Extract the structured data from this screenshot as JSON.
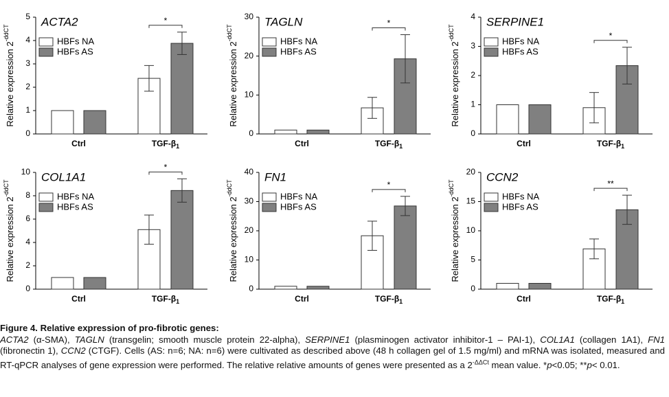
{
  "chart_data": [
    {
      "type": "bar",
      "title": "ACTA2",
      "ylabel": {
        "text": "Relative expression 2",
        "sup": "-ddCT"
      },
      "categories": [
        "Ctrl",
        {
          "text": "TGF-β",
          "sub": "1"
        }
      ],
      "series": [
        {
          "name": "HBFs NA",
          "color": "#ffffff",
          "values": [
            1,
            2.38
          ],
          "errors": [
            null,
            0.55
          ]
        },
        {
          "name": "HBFs AS",
          "color": "#808080",
          "values": [
            1,
            3.88
          ],
          "errors": [
            null,
            0.48
          ]
        }
      ],
      "significance": [
        null,
        "*"
      ],
      "ylim": [
        0,
        5
      ],
      "yticks": [
        0,
        1,
        2,
        3,
        4,
        5
      ]
    },
    {
      "type": "bar",
      "title": "TAGLN",
      "ylabel": {
        "text": "Relative expression 2",
        "sup": "-ddCT"
      },
      "categories": [
        "Ctrl",
        {
          "text": "TGF-β",
          "sub": "1"
        }
      ],
      "series": [
        {
          "name": "HBFs NA",
          "color": "#ffffff",
          "values": [
            1,
            6.7
          ],
          "errors": [
            null,
            2.7
          ]
        },
        {
          "name": "HBFs AS",
          "color": "#808080",
          "values": [
            1,
            19.3
          ],
          "errors": [
            null,
            6.2
          ]
        }
      ],
      "significance": [
        null,
        "*"
      ],
      "ylim": [
        0,
        30
      ],
      "yticks": [
        0,
        10,
        20,
        30
      ]
    },
    {
      "type": "bar",
      "title": "SERPINE1",
      "ylabel": {
        "text": "Relative expression 2",
        "sup": "-ddCT"
      },
      "categories": [
        "Ctrl",
        {
          "text": "TGF-β",
          "sub": "1"
        }
      ],
      "series": [
        {
          "name": "HBFs NA",
          "color": "#ffffff",
          "values": [
            1,
            0.9
          ],
          "errors": [
            null,
            0.52
          ]
        },
        {
          "name": "HBFs AS",
          "color": "#808080",
          "values": [
            1,
            2.34
          ],
          "errors": [
            null,
            0.63
          ]
        }
      ],
      "significance": [
        null,
        "*"
      ],
      "ylim": [
        0,
        4
      ],
      "yticks": [
        0,
        1,
        2,
        3,
        4
      ]
    },
    {
      "type": "bar",
      "title": "COL1A1",
      "ylabel": {
        "text": "Relative expression 2",
        "sup": "-ddCT"
      },
      "categories": [
        "Ctrl",
        {
          "text": "TGF-β",
          "sub": "1"
        }
      ],
      "series": [
        {
          "name": "HBFs NA",
          "color": "#ffffff",
          "values": [
            1,
            5.1
          ],
          "errors": [
            null,
            1.25
          ]
        },
        {
          "name": "HBFs AS",
          "color": "#808080",
          "values": [
            1,
            8.45
          ],
          "errors": [
            null,
            1.0
          ]
        }
      ],
      "significance": [
        null,
        "*"
      ],
      "ylim": [
        0,
        10
      ],
      "yticks": [
        0,
        2,
        4,
        6,
        8,
        10
      ]
    },
    {
      "type": "bar",
      "title": "FN1",
      "ylabel": {
        "text": "Relative expression 2",
        "sup": "-ddCT"
      },
      "categories": [
        "Ctrl",
        {
          "text": "TGF-β",
          "sub": "1"
        }
      ],
      "series": [
        {
          "name": "HBFs NA",
          "color": "#ffffff",
          "values": [
            1,
            18.3
          ],
          "errors": [
            null,
            5
          ]
        },
        {
          "name": "HBFs AS",
          "color": "#808080",
          "values": [
            1,
            28.5
          ],
          "errors": [
            null,
            3.3
          ]
        }
      ],
      "significance": [
        null,
        "*"
      ],
      "ylim": [
        0,
        40
      ],
      "yticks": [
        0,
        10,
        20,
        30,
        40
      ]
    },
    {
      "type": "bar",
      "title": "CCN2",
      "ylabel": {
        "text": "Relative expression 2",
        "sup": "-ddCT"
      },
      "categories": [
        "Ctrl",
        {
          "text": "TGF-β",
          "sub": "1"
        }
      ],
      "series": [
        {
          "name": "HBFs NA",
          "color": "#ffffff",
          "values": [
            1,
            6.9
          ],
          "errors": [
            null,
            1.7
          ]
        },
        {
          "name": "HBFs AS",
          "color": "#808080",
          "values": [
            1,
            13.6
          ],
          "errors": [
            null,
            2.5
          ]
        }
      ],
      "significance": [
        null,
        "**"
      ],
      "ylim": [
        0,
        20
      ],
      "yticks": [
        0,
        5,
        10,
        15,
        20
      ]
    }
  ],
  "caption": {
    "title": "Figure 4. Relative expression of pro-fibrotic genes:",
    "body": [
      {
        "text": "ACTA2",
        "italic": true
      },
      {
        "text": " (α-SMA), "
      },
      {
        "text": "TAGLN",
        "italic": true
      },
      {
        "text": " (transgelin; smooth muscle protein 22-alpha), "
      },
      {
        "text": "SERPINE1",
        "italic": true
      },
      {
        "text": " (plasminogen activator inhibitor-1 – PAI-1), "
      },
      {
        "text": "COL1A1",
        "italic": true
      },
      {
        "text": " (collagen 1A1), "
      },
      {
        "text": "FN1",
        "italic": true
      },
      {
        "text": " (fibronectin 1), "
      },
      {
        "text": "CCN2",
        "italic": true
      },
      {
        "text": " (CTGF). Cells (AS: n=6; NA: n=6) were cultivated as described above (48 h collagen gel of 1.5 mg/ml) and mRNA was isolated, measured and RT-qPCR analyses of gene expression were performed. The relative relative amounts of genes were presented as a 2"
      },
      {
        "text": "-ΔΔCt",
        "sup": true
      },
      {
        "text": " mean value. *"
      },
      {
        "text": "p",
        "italic": true
      },
      {
        "text": "<0.05; **"
      },
      {
        "text": "p",
        "italic": true
      },
      {
        "text": "< 0.01."
      }
    ]
  }
}
